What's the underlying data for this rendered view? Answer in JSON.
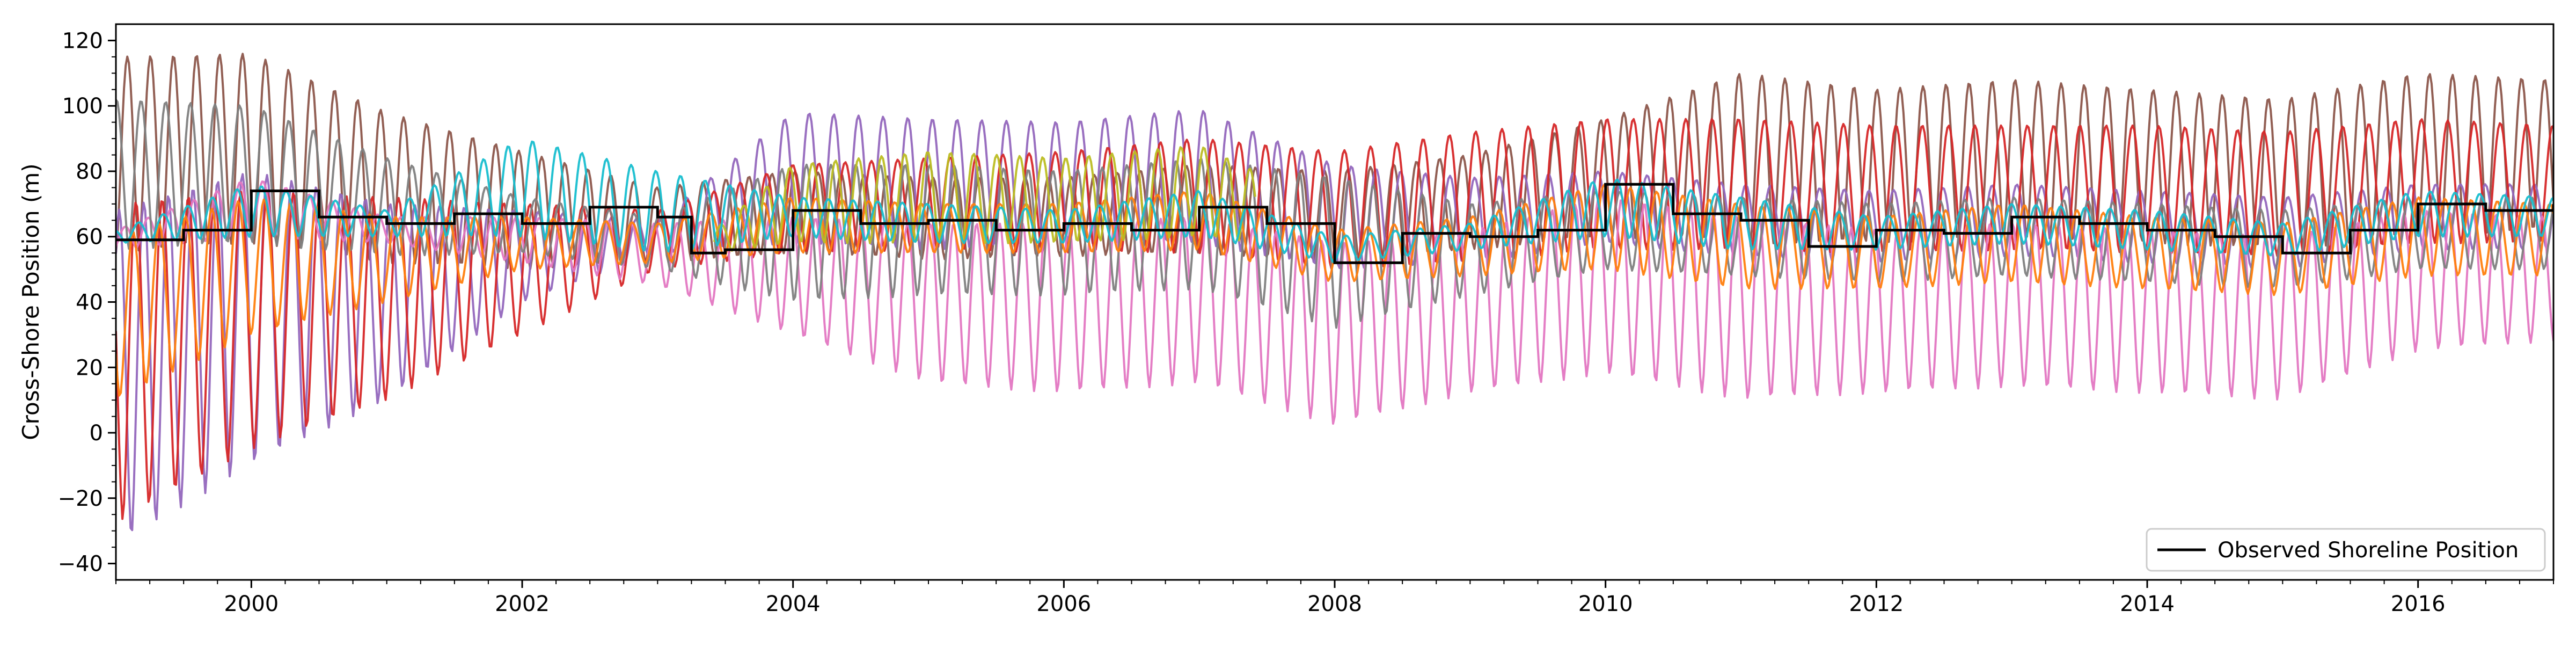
{
  "chart_data": {
    "type": "line",
    "title": "",
    "xlabel": "",
    "ylabel": "Cross-Shore Position (m)",
    "xlim": [
      "1999-01-01",
      "2017-01-01"
    ],
    "ylim": [
      -45,
      125
    ],
    "x_ticks": [
      "2000",
      "2002",
      "2004",
      "2006",
      "2008",
      "2010",
      "2012",
      "2014",
      "2016"
    ],
    "y_ticks": [
      "-40",
      "-20",
      "0",
      "20",
      "40",
      "60",
      "80",
      "100",
      "120"
    ],
    "grid": false,
    "legend_position": "lower right",
    "observed": {
      "name": "Observed Shoreline Position",
      "color": "#000000",
      "x": [
        "1999-01",
        "1999-07",
        "2000-01",
        "2000-07",
        "2001-01",
        "2001-07",
        "2002-01",
        "2002-07",
        "2003-01",
        "2003-04",
        "2003-07",
        "2004-01",
        "2004-07",
        "2005-01",
        "2005-07",
        "2006-01",
        "2006-07",
        "2007-01",
        "2007-07",
        "2008-01",
        "2008-07",
        "2009-01",
        "2009-07",
        "2010-01",
        "2010-07",
        "2011-01",
        "2011-07",
        "2012-01",
        "2012-07",
        "2013-01",
        "2013-07",
        "2014-01",
        "2014-07",
        "2015-01",
        "2015-07",
        "2016-01",
        "2016-07",
        "2017-01"
      ],
      "y": [
        59,
        62,
        74,
        66,
        64,
        67,
        64,
        69,
        66,
        55,
        56,
        68,
        64,
        65,
        62,
        64,
        62,
        69,
        64,
        52,
        61,
        60,
        62,
        76,
        67,
        65,
        57,
        62,
        61,
        66,
        64,
        62,
        60,
        55,
        62,
        70,
        68,
        70
      ]
    },
    "ensemble": [
      {
        "color": "#8c564b",
        "x": [
          "1999-01",
          "2000-01",
          "2001-01",
          "2002-01",
          "2003-01",
          "2004-01",
          "2005-01",
          "2006-01",
          "2007-01",
          "2008-01",
          "2009-01",
          "2010-01",
          "2011-01",
          "2012-01",
          "2013-01",
          "2014-01",
          "2015-01",
          "2016-01",
          "2017-01"
        ],
        "y_upper": [
          115,
          116,
          98,
          86,
          75,
          80,
          78,
          78,
          82,
          80,
          85,
          96,
          110,
          105,
          108,
          105,
          102,
          110,
          108
        ],
        "y_lower": [
          55,
          58,
          52,
          50,
          52,
          55,
          53,
          54,
          55,
          52,
          56,
          60,
          58,
          58,
          60,
          58,
          56,
          60,
          62
        ]
      },
      {
        "color": "#9467bd",
        "x": [
          "1999-01",
          "2000-01",
          "2001-01",
          "2002-01",
          "2003-01",
          "2004-01",
          "2005-01",
          "2006-01",
          "2007-01",
          "2008-01",
          "2009-01",
          "2010-01",
          "2011-01",
          "2012-01",
          "2013-01",
          "2014-01",
          "2015-01",
          "2016-01",
          "2017-01"
        ],
        "y_upper": [
          68,
          80,
          70,
          68,
          65,
          98,
          96,
          95,
          99,
          82,
          78,
          80,
          76,
          74,
          76,
          74,
          72,
          76,
          76
        ],
        "y_lower": [
          -35,
          -10,
          10,
          40,
          55,
          58,
          56,
          58,
          58,
          50,
          52,
          58,
          54,
          52,
          54,
          52,
          50,
          56,
          56
        ]
      },
      {
        "color": "#d62728",
        "x": [
          "1999-01",
          "2000-01",
          "2001-01",
          "2002-01",
          "2003-01",
          "2004-01",
          "2005-01",
          "2006-01",
          "2007-01",
          "2008-01",
          "2009-01",
          "2010-01",
          "2011-01",
          "2012-01",
          "2013-01",
          "2014-01",
          "2015-01",
          "2016-01",
          "2017-01"
        ],
        "y_upper": [
          70,
          74,
          72,
          70,
          68,
          82,
          84,
          86,
          90,
          86,
          92,
          96,
          96,
          94,
          94,
          94,
          92,
          96,
          94
        ],
        "y_lower": [
          -28,
          -5,
          10,
          30,
          50,
          55,
          56,
          55,
          55,
          50,
          52,
          56,
          56,
          55,
          56,
          55,
          54,
          58,
          58
        ]
      },
      {
        "color": "#e377c2",
        "x": [
          "1999-01",
          "2000-01",
          "2001-01",
          "2002-01",
          "2003-01",
          "2004-01",
          "2005-01",
          "2006-01",
          "2007-01",
          "2008-01",
          "2009-01",
          "2010-01",
          "2011-01",
          "2012-01",
          "2013-01",
          "2014-01",
          "2015-01",
          "2016-01",
          "2017-01"
        ],
        "y_upper": [
          62,
          78,
          66,
          66,
          64,
          66,
          64,
          64,
          66,
          58,
          62,
          72,
          66,
          62,
          64,
          62,
          60,
          68,
          66
        ],
        "y_lower": [
          56,
          60,
          58,
          52,
          45,
          30,
          15,
          12,
          15,
          2,
          12,
          18,
          10,
          12,
          14,
          12,
          10,
          25,
          28
        ]
      },
      {
        "color": "#7f7f7f",
        "x": [
          "1999-01",
          "2000-01",
          "2001-01",
          "2002-01",
          "2003-01",
          "2004-01",
          "2005-01",
          "2006-01",
          "2007-01",
          "2008-01",
          "2009-01",
          "2010-01",
          "2011-01",
          "2012-01",
          "2013-01",
          "2014-01",
          "2015-01",
          "2016-01",
          "2017-01"
        ],
        "y_upper": [
          102,
          100,
          84,
          72,
          66,
          82,
          82,
          80,
          84,
          78,
          70,
          74,
          72,
          70,
          72,
          70,
          68,
          72,
          72
        ],
        "y_lower": [
          56,
          58,
          54,
          55,
          50,
          40,
          42,
          42,
          44,
          32,
          42,
          50,
          48,
          46,
          48,
          46,
          44,
          50,
          50
        ]
      },
      {
        "color": "#ff7f0e",
        "x": [
          "1999-01",
          "2000-01",
          "2001-01",
          "2002-01",
          "2003-01",
          "2004-01",
          "2005-01",
          "2006-01",
          "2007-01",
          "2008-01",
          "2009-01",
          "2010-01",
          "2011-01",
          "2012-01",
          "2013-01",
          "2014-01",
          "2015-01",
          "2016-01",
          "2017-01"
        ],
        "y_upper": [
          60,
          72,
          66,
          66,
          64,
          72,
          70,
          70,
          74,
          62,
          66,
          76,
          70,
          66,
          70,
          66,
          64,
          72,
          70
        ],
        "y_lower": [
          10,
          30,
          40,
          50,
          52,
          55,
          55,
          55,
          56,
          46,
          48,
          50,
          44,
          44,
          46,
          44,
          42,
          48,
          48
        ]
      },
      {
        "color": "#bcbd22",
        "x": [
          "2003-06",
          "2004-01",
          "2005-01",
          "2006-01",
          "2007-01",
          "2007-06"
        ],
        "y_upper": [
          62,
          82,
          86,
          84,
          88,
          80
        ],
        "y_lower": [
          55,
          58,
          58,
          58,
          60,
          58
        ]
      },
      {
        "color": "#17becf",
        "x": [
          "1999-01",
          "2000-01",
          "2001-01",
          "2002-01",
          "2003-01",
          "2004-01",
          "2005-01",
          "2006-01",
          "2007-01",
          "2008-01",
          "2009-01",
          "2010-01",
          "2011-01",
          "2012-01",
          "2013-01",
          "2014-01",
          "2015-01",
          "2016-01",
          "2017-01"
        ],
        "y_upper": [
          62,
          76,
          68,
          90,
          80,
          72,
          70,
          68,
          74,
          60,
          64,
          78,
          72,
          66,
          70,
          68,
          64,
          74,
          72
        ],
        "y_lower": [
          58,
          60,
          60,
          60,
          55,
          60,
          58,
          58,
          60,
          52,
          56,
          60,
          56,
          56,
          58,
          56,
          54,
          60,
          60
        ]
      }
    ]
  }
}
